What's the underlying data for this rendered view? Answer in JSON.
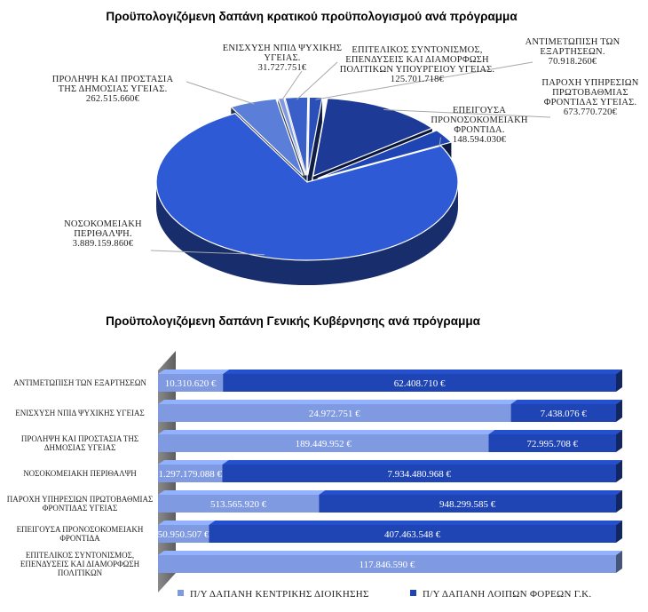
{
  "chart_data": [
    {
      "type": "pie",
      "title": "Προϋπολογιζόμενη δαπάνη κρατικού προϋπολογισμού ανά πρόγραμμα",
      "slices": [
        {
          "label": [
            "ΑΝΤΙΜΕΤΩΠΙΣΗ ΤΩΝ",
            "ΕΞΑΡΤΗΣΕΩΝ."
          ],
          "value_label": "70.918.260€",
          "value": 70918260,
          "color": "#2a4fb8"
        },
        {
          "label": [
            "ΠΑΡΟΧΗ ΥΠΗΡΕΣΙΩΝ",
            "ΠΡΩΤΟΒΑΘΜΙΑΣ",
            "ΦΡΟΝΤΙΔΑΣ ΥΓΕΙΑΣ."
          ],
          "value_label": "673.770.720€",
          "value": 673770720,
          "color": "#1c3a96"
        },
        {
          "label": [
            "ΕΠΕΙΓΟΥΣΑ",
            "ΠΡΟΝΟΣΟΚΟΜΕΙΑΚΗ",
            "ΦΡΟΝΤΙΔΑ."
          ],
          "value_label": "148.594.030€",
          "value": 148594030,
          "color": "#1f45b4"
        },
        {
          "label": [
            "ΝΟΣΟΚΟΜΕΙΑΚΗ",
            "ΠΕΡΙΘΑΛΨΗ."
          ],
          "value_label": "3.889.159.860€",
          "value": 3889159860,
          "color": "#2f5ad6"
        },
        {
          "label": [
            "ΠΡΟΛΗΨΗ ΚΑΙ ΠΡΟΣΤΑΣΙΑ",
            "ΤΗΣ ΔΗΜΟΣΙΑΣ ΥΓΕΙΑΣ."
          ],
          "value_label": "262.515.660€",
          "value": 262515660,
          "color": "#5b7fd8"
        },
        {
          "label": [
            "ΕΝΙΣΧΥΣΗ ΝΠΙΔ ΨΥΧΙΚΗΣ",
            "ΥΓΕΙΑΣ."
          ],
          "value_label": "31.727.751€",
          "value": 31727751,
          "color": "#7f9ae0"
        },
        {
          "label": [
            "ΕΠΙΤΕΛΙΚΟΣ ΣΥΝΤΟΝΙΣΜΟΣ,",
            "ΕΠΕΝΔΥΣΕΙΣ ΚΑΙ ΔΙΑΜΟΡΦΩΣΗ",
            "ΠΟΛΙΤΙΚΩΝ ΥΠΟΥΡΓΕΙΟΥ ΥΓΕΙΑΣ."
          ],
          "value_label": "125.701.718€",
          "value": 125701718,
          "color": "#3b5fc8"
        }
      ]
    },
    {
      "type": "bar",
      "orientation": "horizontal",
      "stacked": true,
      "title": "Προϋπολογιζόμενη δαπάνη Γενικής Κυβέρνησης ανά πρόγραμμα",
      "categories": [
        [
          "ΑΝΤΙΜΕΤΩΠΙΣΗ ΤΩΝ ΕΞΑΡΤΗΣΕΩΝ"
        ],
        [
          "ΕΝΙΣΧΥΣΗ ΝΠΙΔ ΨΥΧΙΚΗΣ ΥΓΕΙΑΣ"
        ],
        [
          "ΠΡΟΛΗΨΗ ΚΑΙ ΠΡΟΣΤΑΣΙΑ ΤΗΣ",
          "ΔΗΜΟΣΙΑΣ ΥΓΕΙΑΣ"
        ],
        [
          "ΝΟΣΟΚΟΜΕΙΑΚΗ ΠΕΡΙΘΑΛΨΗ"
        ],
        [
          "ΠΑΡΟΧΗ ΥΠΗΡΕΣΙΩΝ ΠΡΩΤΟΒΑΘΜΙΑΣ",
          "ΦΡΟΝΤΙΔΑΣ ΥΓΕΙΑΣ"
        ],
        [
          "ΕΠΕΙΓΟΥΣΑ ΠΡΟΝΟΣΟΚΟΜΕΙΑΚΗ",
          "ΦΡΟΝΤΙΔΑ"
        ],
        [
          "ΕΠΙΤΕΛΙΚΟΣ ΣΥΝΤΟΝΙΣΜΟΣ,",
          "ΕΠΕΝΔΥΣΕΙΣ ΚΑΙ ΔΙΑΜΟΡΦΩΣΗ",
          "ΠΟΛΙΤΙΚΩΝ"
        ]
      ],
      "series": [
        {
          "name": "Π/Υ ΔΑΠΑΝΗ ΚΕΝΤΡΙΚΗΣ ΔΙΟΙΚΗΣΗΣ",
          "color": "#7f9ae0",
          "values": [
            10310620,
            24972751,
            189449952,
            1297179088,
            513565920,
            50950507,
            117846590
          ],
          "labels": [
            "10.310.620 €",
            "24.972.751 €",
            "189.449.952 €",
            "1.297.179.088 €",
            "513.565.920 €",
            "50.950.507 €",
            "117.846.590 €"
          ]
        },
        {
          "name": "Π/Υ ΔΑΠΑΝΗ ΛΟΙΠΩΝ ΦΟΡΕΩΝ Γ.Κ.",
          "color": "#1f45b4",
          "values": [
            62408710,
            7438076,
            72995708,
            7934480968,
            948299585,
            407463548,
            0
          ],
          "labels": [
            "62.408.710 €",
            "7.438.076 €",
            "72.995.708 €",
            "7.934.480.968 €",
            "948.299.585 €",
            "407.463.548 €",
            ""
          ]
        }
      ],
      "stack_mode": "percent",
      "legend_position": "bottom"
    }
  ]
}
